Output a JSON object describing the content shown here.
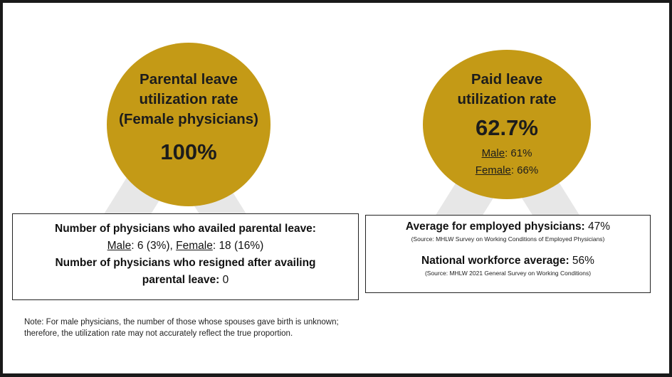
{
  "medal_left": {
    "title_line1": "Parental leave",
    "title_line2": "utilization rate",
    "title_line3": "(Female physicians)",
    "value": "100%"
  },
  "medal_right": {
    "title_line1": "Paid leave",
    "title_line2": "utilization rate",
    "value": "62.7%",
    "male_label": "Male",
    "male_value": ": 61%",
    "female_label": "Female",
    "female_value": ": 66%"
  },
  "box_left": {
    "line1": "Number of physicians who availed parental leave:",
    "male_label": "Male",
    "male_value": ": 6 (3%), ",
    "female_label": "Female",
    "female_value": ": 18 (16%)",
    "line3": "Number of physicians who resigned after availing",
    "line4_label": "parental leave:",
    "line4_value": " 0"
  },
  "box_right": {
    "employed_label": "Average for employed physicians:",
    "employed_value": " 47%",
    "employed_source": "(Source: MHLW Survey on Working Conditions of Employed Physicians)",
    "national_label": "National workforce average:",
    "national_value": " 56%",
    "national_source": "(Source: MHLW 2021 General Survey on Working Conditions)"
  },
  "note": {
    "line1": "Note: For male physicians, the number of those whose spouses gave birth is unknown;",
    "line2": "therefore, the utilization rate may not accurately reflect the true proportion."
  },
  "colors": {
    "medal": "#c49a16",
    "ribbon": "#e7e7e7",
    "frame": "#1a1a1a"
  }
}
